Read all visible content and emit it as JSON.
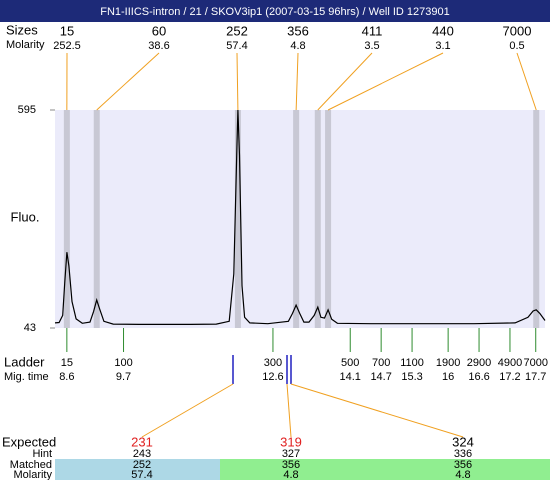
{
  "title": "FN1-IIICS-intron / 21 / SKOV3ip1 (2007-03-15 96hrs) / Well ID 1273901",
  "peaks": {
    "size_label": "Sizes",
    "molarity_label": "Molarity",
    "sizes": [
      15,
      60,
      252,
      356,
      411,
      440,
      7000
    ],
    "molarity": [
      252.5,
      38.6,
      57.4,
      4.8,
      3.5,
      3.1,
      0.5
    ],
    "times": [
      8.6,
      9.18,
      11.92,
      13.05,
      13.47,
      13.67,
      17.71
    ]
  },
  "chart_data": {
    "type": "line",
    "ylabel": "Fluo.",
    "color": "#000000",
    "xlim": [
      8.37,
      17.88
    ],
    "ylim": [
      43,
      595
    ],
    "yticks": [
      43,
      595
    ],
    "x": [
      8.37,
      8.45,
      8.52,
      8.56,
      8.6,
      8.64,
      8.7,
      8.78,
      8.9,
      9.05,
      9.12,
      9.18,
      9.24,
      9.32,
      9.5,
      10,
      10.5,
      11,
      11.5,
      11.75,
      11.84,
      11.9,
      11.92,
      11.95,
      12.0,
      12.05,
      12.15,
      12.5,
      12.9,
      12.98,
      13.05,
      13.12,
      13.2,
      13.3,
      13.4,
      13.47,
      13.53,
      13.6,
      13.67,
      13.74,
      13.85,
      14.5,
      15.5,
      16.5,
      17.3,
      17.55,
      17.65,
      17.71,
      17.78,
      17.88
    ],
    "values": [
      56,
      57,
      75,
      160,
      235,
      200,
      110,
      66,
      55,
      58,
      85,
      114,
      90,
      60,
      53,
      52,
      52,
      52,
      53,
      60,
      180,
      500,
      595,
      480,
      150,
      70,
      56,
      54,
      60,
      80,
      101,
      80,
      58,
      58,
      75,
      96,
      70,
      68,
      89,
      65,
      55,
      54,
      54,
      54,
      56,
      70,
      86,
      89,
      80,
      62
    ]
  },
  "ladder": {
    "label": "Ladder",
    "time_label": "Mig. time",
    "sizes": [
      15,
      100,
      300,
      500,
      700,
      1100,
      1900,
      2900,
      4900,
      7000
    ],
    "times": [
      8.6,
      9.7,
      12.6,
      14.1,
      14.7,
      15.3,
      16,
      16.6,
      17.2,
      17.7
    ]
  },
  "expected": {
    "label": "Expected",
    "hint_label": "Hint",
    "matched_label": "Matched",
    "molarity_label": "Molarity",
    "expected": [
      231,
      319,
      324
    ],
    "hint": [
      243,
      327,
      336
    ],
    "matched": [
      252,
      356,
      356
    ],
    "molarity": [
      57.4,
      4.8,
      4.8
    ]
  }
}
